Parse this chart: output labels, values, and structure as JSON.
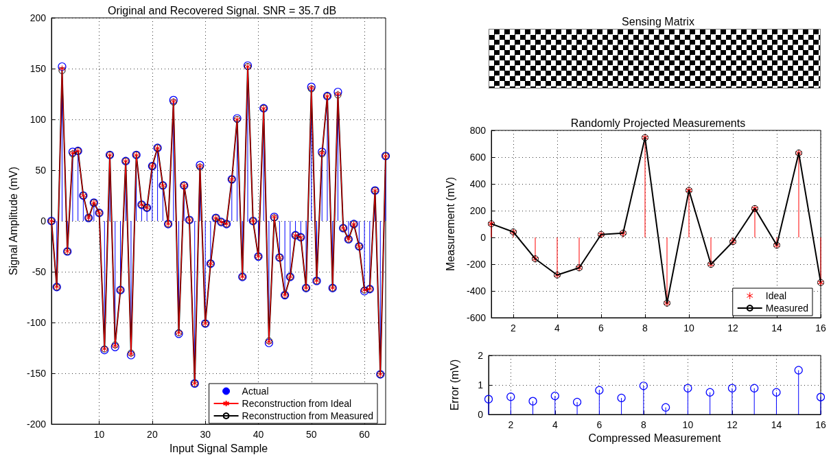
{
  "chart_data": [
    {
      "type": "line",
      "title": "Original and Recovered Signal. SNR = 35.7 dB",
      "xlabel": "Input Signal Sample",
      "ylabel": "Signal Amplitude (mV)",
      "x": [
        1,
        2,
        3,
        4,
        5,
        6,
        7,
        8,
        9,
        10,
        11,
        12,
        13,
        14,
        15,
        16,
        17,
        18,
        19,
        20,
        21,
        22,
        23,
        24,
        25,
        26,
        27,
        28,
        29,
        30,
        31,
        32,
        33,
        34,
        35,
        36,
        37,
        38,
        39,
        40,
        41,
        42,
        43,
        44,
        45,
        46,
        47,
        48,
        49,
        50,
        51,
        52,
        53,
        54,
        55,
        56,
        57,
        58,
        59,
        60,
        61,
        62,
        63,
        64
      ],
      "xlim": [
        1,
        64
      ],
      "xticks": [
        10,
        20,
        30,
        40,
        50,
        60
      ],
      "ylim": [
        -200,
        200
      ],
      "yticks": [
        -200,
        -150,
        -100,
        -50,
        0,
        50,
        100,
        150,
        200
      ],
      "grid": true,
      "legend": "bottom right",
      "series": [
        {
          "name": "Actual",
          "type": "lollipop",
          "color": "#0000ff",
          "marker": "circle",
          "values": [
            0,
            -65,
            152,
            -30,
            68,
            69,
            25,
            3,
            18,
            8,
            -127,
            65,
            -124,
            -68,
            59,
            -132,
            65,
            16,
            13,
            54,
            72,
            35,
            -3,
            119,
            -111,
            35,
            1,
            -160,
            55,
            -101,
            -42,
            3,
            -1,
            -3,
            41,
            101,
            -55,
            153,
            0,
            -35,
            111,
            -120,
            4,
            -36,
            -73,
            -55,
            -14,
            -16,
            -66,
            132,
            -59,
            68,
            123,
            -66,
            127,
            -7,
            -18,
            -3,
            -25,
            -69,
            -67,
            30,
            -151,
            64
          ]
        },
        {
          "name": "Reconstruction from Ideal",
          "type": "line",
          "color": "#ff0000",
          "marker": "cross",
          "values": [
            0,
            -65,
            150,
            -30,
            67,
            69,
            25,
            3,
            18,
            8,
            -126,
            65,
            -123,
            -68,
            59,
            -131,
            65,
            16,
            13,
            54,
            72,
            35,
            -3,
            118,
            -110,
            35,
            1,
            -160,
            54,
            -101,
            -42,
            3,
            -1,
            -3,
            41,
            100,
            -55,
            152,
            0,
            -35,
            111,
            -119,
            4,
            -36,
            -73,
            -55,
            -14,
            -16,
            -66,
            131,
            -59,
            67,
            123,
            -66,
            125,
            -7,
            -18,
            -3,
            -25,
            -68,
            -67,
            30,
            -151,
            64
          ]
        },
        {
          "name": "Reconstruction from Measured",
          "type": "line",
          "color": "#000000",
          "marker": "circle",
          "values": [
            0,
            -65,
            148,
            -30,
            66,
            69,
            25,
            3,
            18,
            8,
            -126,
            65,
            -122,
            -68,
            59,
            -130,
            65,
            16,
            13,
            54,
            72,
            35,
            -3,
            117,
            -110,
            35,
            1,
            -160,
            53,
            -101,
            -42,
            3,
            -1,
            -3,
            41,
            100,
            -55,
            152,
            0,
            -35,
            111,
            -118,
            3,
            -36,
            -73,
            -55,
            -14,
            -16,
            -66,
            130,
            -59,
            66,
            123,
            -66,
            124,
            -7,
            -18,
            -3,
            -25,
            -68,
            -67,
            30,
            -151,
            64
          ]
        }
      ]
    },
    {
      "type": "other",
      "title": "Sensing Matrix"
    },
    {
      "type": "line",
      "title": "Randomly Projected Measurements",
      "ylabel": "Measurement (mV)",
      "x": [
        1,
        2,
        3,
        4,
        5,
        6,
        7,
        8,
        9,
        10,
        11,
        12,
        13,
        14,
        15,
        16
      ],
      "xlim": [
        1,
        16
      ],
      "xticks": [
        2,
        4,
        6,
        8,
        10,
        12,
        14,
        16
      ],
      "ylim": [
        -600,
        800
      ],
      "yticks": [
        -600,
        -400,
        -200,
        0,
        200,
        400,
        600,
        800
      ],
      "grid": true,
      "legend": "bottom right",
      "series": [
        {
          "name": "Ideal",
          "type": "lollipop",
          "color": "#ff0000",
          "marker": "cross",
          "values": [
            102,
            41,
            -160,
            -281,
            -227,
            22,
            32,
            746,
            -491,
            352,
            -201,
            -32,
            216,
            -58,
            631,
            -337
          ]
        },
        {
          "name": "Measured",
          "type": "line",
          "color": "#000000",
          "marker": "circle",
          "values": [
            102,
            41,
            -160,
            -281,
            -227,
            22,
            32,
            746,
            -491,
            352,
            -201,
            -32,
            216,
            -58,
            631,
            -337
          ]
        }
      ]
    },
    {
      "type": "lollipop",
      "xlabel": "Compressed Measurement",
      "ylabel": "Error (mV)",
      "x": [
        1,
        2,
        3,
        4,
        5,
        6,
        7,
        8,
        9,
        10,
        11,
        12,
        13,
        14,
        15,
        16
      ],
      "xlim": [
        1,
        16
      ],
      "xticks": [
        2,
        4,
        6,
        8,
        10,
        12,
        14,
        16
      ],
      "ylim": [
        0,
        2
      ],
      "yticks": [
        0,
        1,
        2
      ],
      "grid": true,
      "color": "#0000ff",
      "marker": "circle",
      "values": [
        0.52,
        0.6,
        0.45,
        0.63,
        0.42,
        0.82,
        0.56,
        0.97,
        0.24,
        0.89,
        0.75,
        0.89,
        0.89,
        0.75,
        1.5,
        0.59
      ]
    }
  ]
}
